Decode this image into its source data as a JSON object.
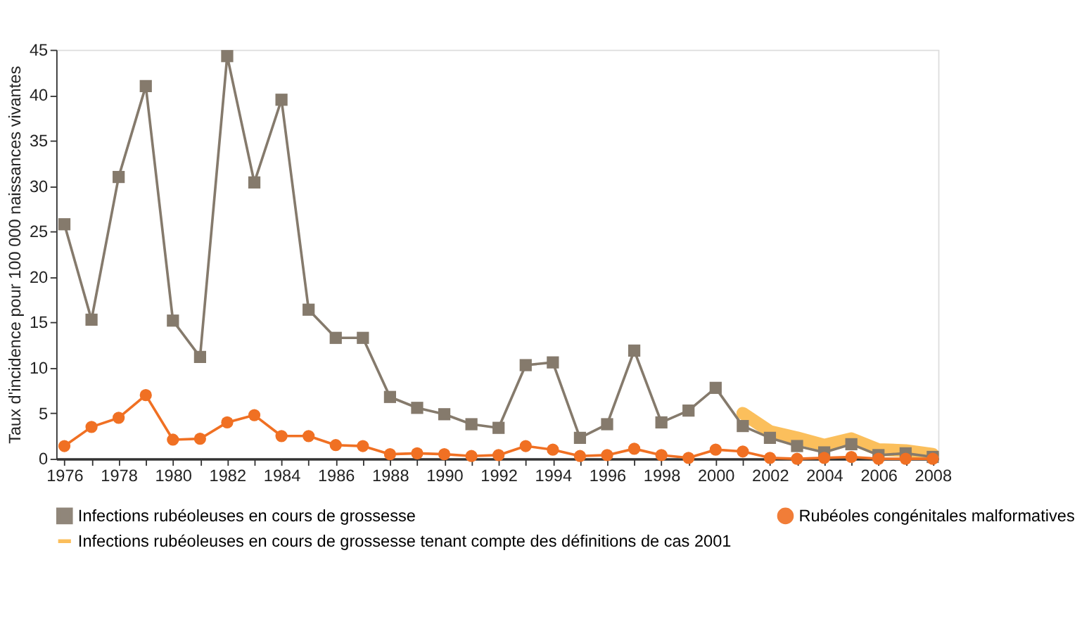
{
  "chart_data": {
    "type": "line",
    "ylabel": "Taux d'incidence pour 100 000 naissances vivantes",
    "x": [
      1976,
      1977,
      1978,
      1979,
      1980,
      1981,
      1982,
      1983,
      1984,
      1985,
      1986,
      1987,
      1988,
      1989,
      1990,
      1991,
      1992,
      1993,
      1994,
      1995,
      1996,
      1997,
      1998,
      1999,
      2000,
      2001,
      2002,
      2003,
      2004,
      2005,
      2006,
      2007,
      2008
    ],
    "xlim": [
      1975.7,
      2008.2
    ],
    "xticks": [
      1976,
      {
        "value": 1977,
        "label": null
      },
      1978,
      {
        "value": 1979,
        "label": null
      },
      1980,
      {
        "value": 1981,
        "label": null
      },
      1982,
      {
        "value": 1983,
        "label": null
      },
      1984,
      {
        "value": 1985,
        "label": null
      },
      1986,
      {
        "value": 1987,
        "label": null
      },
      1988,
      {
        "value": 1989,
        "label": null
      },
      1990,
      {
        "value": 1991,
        "label": null
      },
      1992,
      {
        "value": 1993,
        "label": null
      },
      1994,
      {
        "value": 1995,
        "label": null
      },
      1996,
      {
        "value": 1997,
        "label": null
      },
      1998,
      {
        "value": 1999,
        "label": null
      },
      2000,
      {
        "value": 2001,
        "label": null
      },
      2002,
      {
        "value": 2003,
        "label": null
      },
      2004,
      {
        "value": 2005,
        "label": null
      },
      2006,
      {
        "value": 2007,
        "label": null
      },
      2008
    ],
    "ylim": [
      0,
      45
    ],
    "yticks": [
      0,
      5,
      10,
      15,
      20,
      25,
      30,
      35,
      40,
      45
    ],
    "grid": false,
    "legend": "bottom",
    "series": [
      {
        "name": "Infections rubéoleuses en cours de grossesse",
        "color": "#857a6c",
        "marker": "square",
        "values": [
          25.8,
          15.3,
          31,
          41,
          15.2,
          11.2,
          44.3,
          30.4,
          39.5,
          16.4,
          13.3,
          13.3,
          6.8,
          5.6,
          4.9,
          3.8,
          3.4,
          10.3,
          10.6,
          2.3,
          3.8,
          11.9,
          4.0,
          5.3,
          7.8,
          3.6,
          2.3,
          1.4,
          0.7,
          1.6,
          0.4,
          0.6,
          0.2
        ]
      },
      {
        "name": "Rubéoles congénitales malformatives",
        "color": "#f07023",
        "marker": "circle",
        "values": [
          1.4,
          3.5,
          4.5,
          7.0,
          2.1,
          2.2,
          4.0,
          4.8,
          2.5,
          2.5,
          1.5,
          1.4,
          0.5,
          0.6,
          0.5,
          0.3,
          0.4,
          1.4,
          1.0,
          0.3,
          0.4,
          1.1,
          0.4,
          0.1,
          1.0,
          0.8,
          0.1,
          0.0,
          0.1,
          0.2,
          0.0,
          0.0,
          0.0
        ]
      },
      {
        "name": "Infections rubéoleuses en cours de grossesse tenant compte des définitions de cas 2001",
        "color": "#fbb84a",
        "marker": "none",
        "x": [
          2001,
          2002,
          2003,
          2004,
          2005,
          2006,
          2007,
          2008
        ],
        "values": [
          5.0,
          3.0,
          2.3,
          1.5,
          2.2,
          1.0,
          0.9,
          0.5
        ]
      }
    ]
  }
}
